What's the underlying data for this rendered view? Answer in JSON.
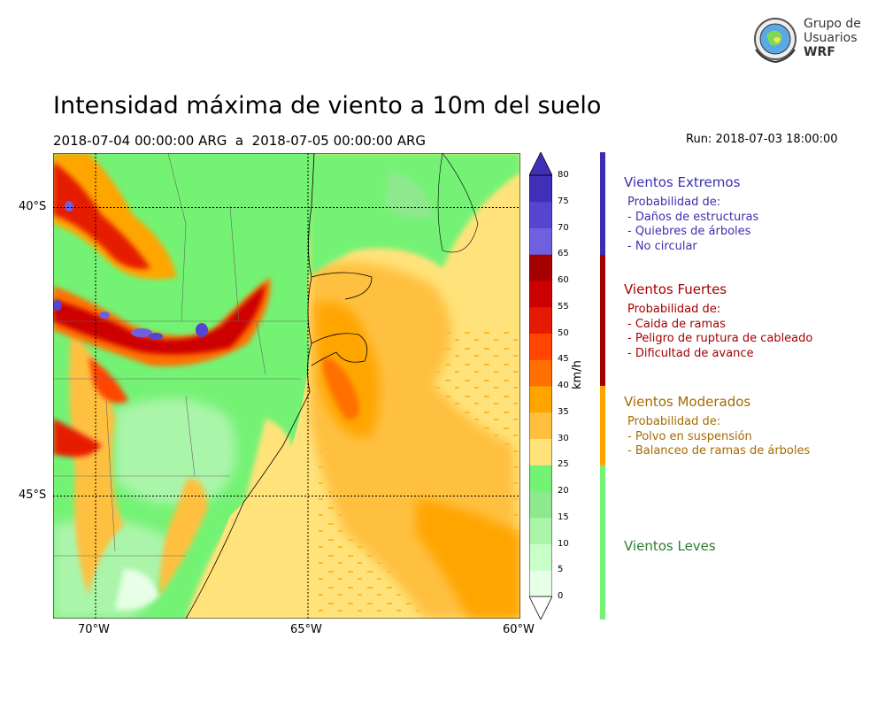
{
  "title": "Intensidad máxima de viento a 10m del suelo",
  "subtitle": "2018-07-04 00:00:00 ARG  a  2018-07-05 00:00:00 ARG",
  "run": "Run: 2018-07-03 18:00:00",
  "logo": {
    "lines": [
      "Grupo de",
      "Usuarios",
      "WRF"
    ],
    "icon": "globe-emblem-icon"
  },
  "map": {
    "lon_range": [
      -71,
      -60
    ],
    "lat_range": [
      -48.6,
      -39.1
    ],
    "lon_ticks": [
      {
        "value": -70,
        "label": "70°W"
      },
      {
        "value": -65,
        "label": "65°W"
      },
      {
        "value": -60,
        "label": "60°W"
      }
    ],
    "lat_ticks": [
      {
        "value": -40,
        "label": "40°S"
      },
      {
        "value": -45,
        "label": "45°S"
      }
    ],
    "gridlines": "dotted"
  },
  "colorbar": {
    "unit": "km/h",
    "levels": [
      0,
      5,
      10,
      15,
      20,
      25,
      30,
      35,
      40,
      45,
      50,
      55,
      60,
      65,
      70,
      75,
      80
    ],
    "tick_labels": [
      "0",
      "5",
      "10",
      "15",
      "20",
      "25",
      "30",
      "35",
      "40",
      "45",
      "50",
      "55",
      "60",
      "65",
      "70",
      "75",
      "80"
    ],
    "colors": [
      "#e6ffe6",
      "#c8ffc8",
      "#aaf5aa",
      "#8ee88e",
      "#74f274",
      "#ffe37a",
      "#ffc040",
      "#ffa500",
      "#ff7000",
      "#ff4500",
      "#e61a00",
      "#cc0000",
      "#a50000",
      "#7060e0",
      "#5545d0",
      "#4030b8"
    ],
    "extend": "both"
  },
  "categories": [
    {
      "title": "Vientos Extremos",
      "color": "#3a2fb0",
      "band_color": "#3a2fb0",
      "lines": [
        "Probabilidad de:",
        "- Daños de estructuras",
        "- Quiebres de árboles",
        "- No circular"
      ]
    },
    {
      "title": "Vientos Fuertes",
      "color": "#a50000",
      "band_color": "#a50000",
      "lines": [
        "Probabilidad de:",
        "- Caida de ramas",
        "- Peligro de ruptura de cableado",
        "- Dificultad de avance"
      ]
    },
    {
      "title": "Vientos Moderados",
      "color": "#a66a00",
      "band_color": "#ffa500",
      "lines": [
        "Probabilidad de:",
        "- Polvo en suspensión",
        "- Balanceo de ramas de árboles"
      ]
    },
    {
      "title": "Vientos Leves",
      "color": "#2e7d32",
      "band_color": "#74f274",
      "lines": []
    }
  ]
}
